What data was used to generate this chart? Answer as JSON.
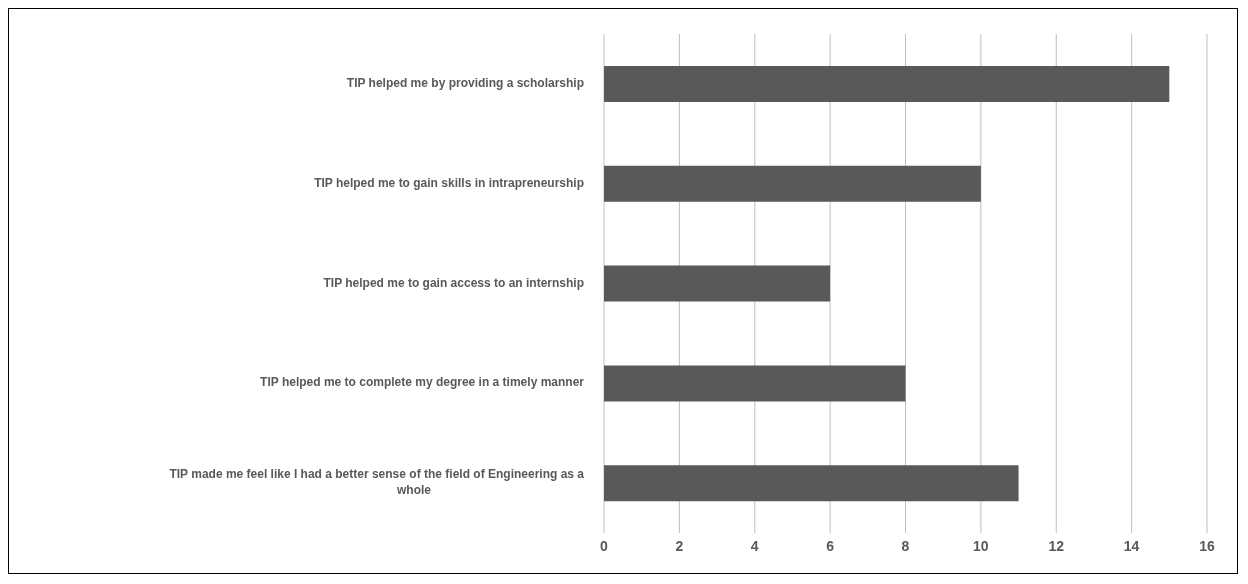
{
  "chart_data": {
    "type": "bar",
    "orientation": "horizontal",
    "categories": [
      "TIP helped me by providing a scholarship",
      "TIP helped me to gain skills in intrapreneurship",
      "TIP helped me to gain access to an internship",
      "TIP helped me to complete my degree in a timely manner",
      "TIP made me feel like I had a better sense of the field of Engineering as a whole"
    ],
    "values": [
      15,
      10,
      6,
      8,
      11
    ],
    "color": "#595959",
    "xlim": [
      0,
      16
    ],
    "xticks": [
      0,
      2,
      4,
      6,
      8,
      10,
      12,
      14,
      16
    ],
    "grid": "x"
  }
}
